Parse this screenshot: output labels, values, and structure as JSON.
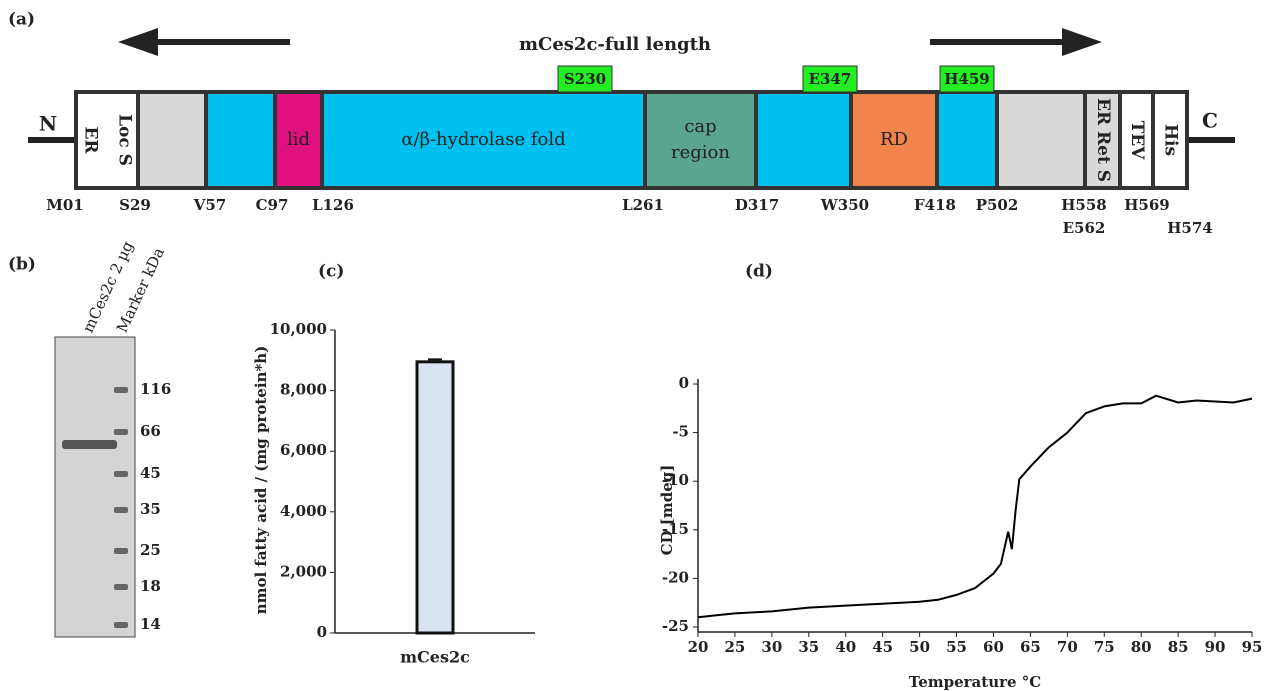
{
  "panel_labels": [
    "(a)",
    "(b)",
    "(c)",
    "(d)"
  ],
  "domain_map": {
    "title": "mCes2c-full length",
    "n_terminus": "N",
    "c_terminus": "C",
    "segments": [
      {
        "label": [
          "ER",
          "Loc S"
        ],
        "color": "#ffffff",
        "vertical": true
      },
      {
        "color": "#d9d9d9"
      },
      {
        "color": "#00c0f0"
      },
      {
        "label": [
          "lid"
        ],
        "color": "#e0117f"
      },
      {
        "label": [
          "α/β-hydrolase fold"
        ],
        "color": "#00c0f0"
      },
      {
        "label": [
          "cap",
          "region"
        ],
        "color": "#5aa590"
      },
      {
        "color": "#00c0f0"
      },
      {
        "label": [
          "RD"
        ],
        "color": "#f0844a"
      },
      {
        "color": "#00c0f0"
      },
      {
        "color": "#d9d9d9"
      },
      {
        "label": [
          "ER Ret S"
        ],
        "color": "#d9d9d9",
        "vertical": true
      },
      {
        "label": [
          "TEV"
        ],
        "color": "#ffffff",
        "vertical": true
      },
      {
        "label": [
          "His"
        ],
        "color": "#ffffff",
        "vertical": true
      }
    ],
    "residues": [
      "M01",
      "S29",
      "V57",
      "C97",
      "L126",
      "L261",
      "D317",
      "W350",
      "F418",
      "P502",
      "H558",
      "E562",
      "H569",
      "H574"
    ],
    "active_sites": [
      "S230",
      "E347",
      "H459"
    ]
  },
  "gel": {
    "lanes": [
      "mCes2c 2 µg",
      "Marker kDa"
    ],
    "markers": [
      116,
      66,
      45,
      35,
      25,
      18,
      14
    ]
  },
  "chart_data": [
    {
      "type": "bar",
      "categories": [
        "mCes2c"
      ],
      "values": [
        8950
      ],
      "errors": [
        80
      ],
      "color": "#dae3f3",
      "y_label": "nmol fatty acid / (mg protein*h)",
      "ylim": [
        0,
        10000
      ],
      "yticks": [
        0,
        {
          "value": 2000,
          "label": "2,000"
        },
        {
          "value": 4000,
          "label": "4,000"
        },
        {
          "value": 6000,
          "label": "6,000"
        },
        {
          "value": 8000,
          "label": "8,000"
        },
        {
          "value": 10000,
          "label": "10,000"
        }
      ]
    },
    {
      "type": "line",
      "x_label": "Temperature °C",
      "y_label": "CD [mdeg]",
      "x": [
        20,
        22.5,
        25,
        27.5,
        30,
        32.5,
        35,
        37.5,
        40,
        42.5,
        45,
        47.5,
        50,
        52.5,
        55,
        57.5,
        60,
        61,
        62,
        62.5,
        63,
        63.5,
        65,
        67.5,
        70,
        72.5,
        75,
        77.5,
        80,
        82,
        85,
        87.5,
        90,
        92.5,
        95
      ],
      "series": [
        {
          "color": "#000000",
          "values": [
            -24,
            -23.8,
            -23.6,
            -23.5,
            -23.4,
            -23.2,
            -23,
            -22.9,
            -22.8,
            -22.7,
            -22.6,
            -22.5,
            -22.4,
            -22.2,
            -21.7,
            -21,
            -19.5,
            -18.5,
            -15.2,
            -17,
            -13,
            -9.8,
            -8.5,
            -6.5,
            -5,
            -3,
            -2.3,
            -2,
            -2,
            -1.2,
            -1.9,
            -1.7,
            -1.8,
            -1.9,
            -1.5
          ]
        }
      ],
      "xlim": [
        20,
        95
      ],
      "xticks": [
        20,
        25,
        30,
        35,
        40,
        45,
        50,
        55,
        60,
        65,
        70,
        75,
        80,
        85,
        90,
        95
      ],
      "ylim": [
        -25,
        0
      ],
      "yticks": [
        0,
        -5,
        -10,
        -15,
        -20,
        -25
      ]
    }
  ]
}
